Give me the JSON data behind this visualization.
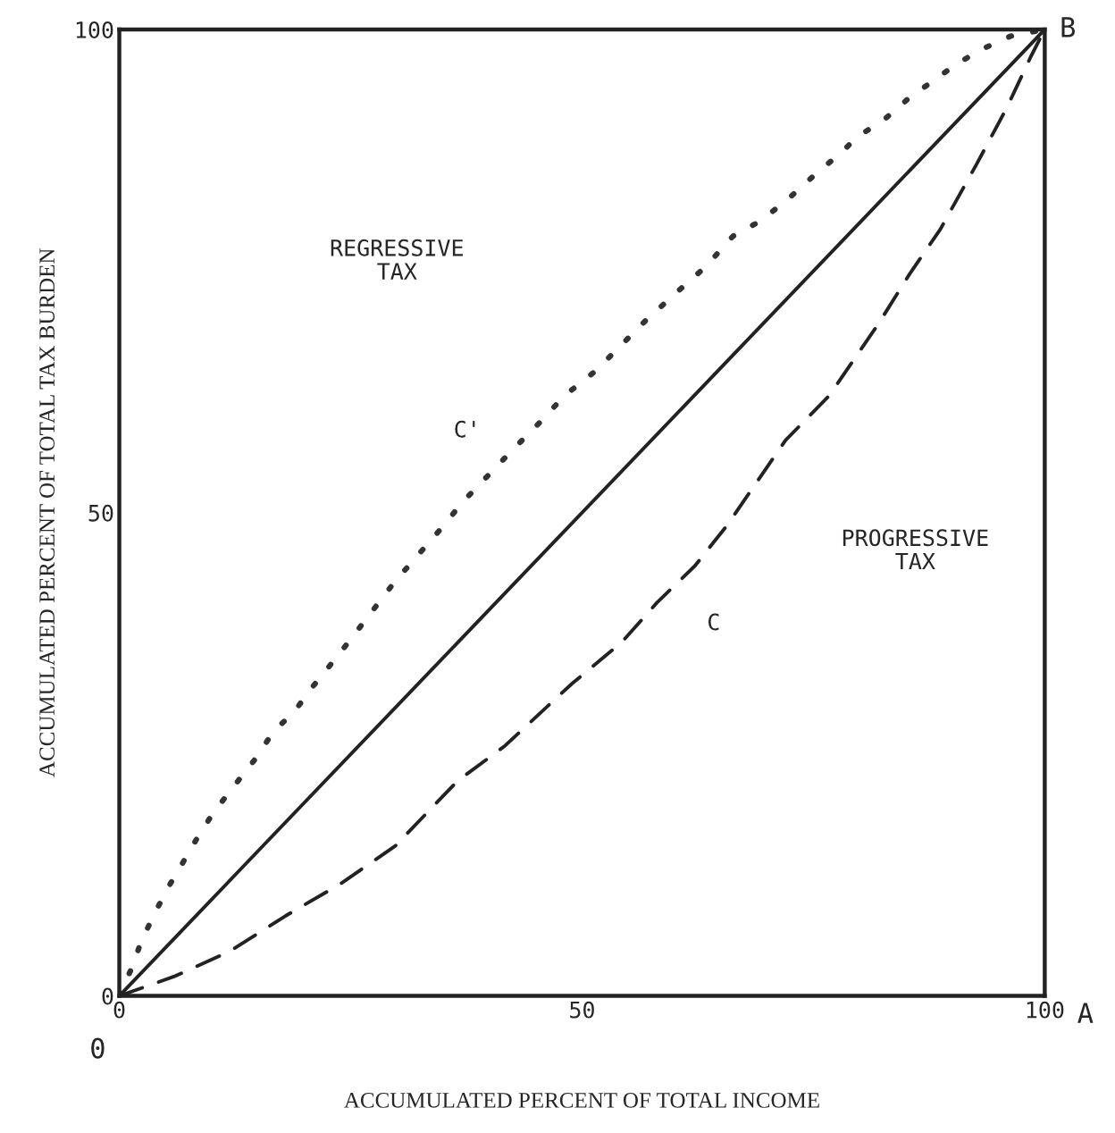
{
  "chart_data": {
    "type": "line",
    "xlabel": "ACCUMULATED PERCENT OF TOTAL INCOME",
    "ylabel": "ACCUMULATED PERCENT OF TOTAL TAX BURDEN",
    "xlim": [
      0,
      100
    ],
    "ylim": [
      0,
      100
    ],
    "xticks": [
      0,
      50,
      100
    ],
    "yticks": [
      0,
      50,
      100
    ],
    "grid": false,
    "legend": false,
    "series": [
      {
        "color": "#333333",
        "line_style": "dotted",
        "x": [
          0,
          1.3,
          2.4,
          3.7,
          5.2,
          7.0,
          8.7,
          10.2,
          12.8,
          14.6,
          16.7,
          18.9,
          20.9,
          22.6,
          24.6,
          29.8,
          35.0,
          37.0,
          42.4,
          45.4,
          48.1,
          51.5,
          56.9,
          60.0,
          63.3,
          66.3,
          69.3,
          72.2,
          75.2,
          77.8,
          79.8,
          82.8,
          85.2,
          90.6,
          93.3,
          96.3,
          100
        ],
        "values": [
          0,
          2.8,
          5.7,
          8.3,
          11.1,
          14.0,
          16.8,
          19.0,
          22.2,
          24.4,
          27.4,
          29.4,
          32.0,
          34.0,
          36.4,
          42.9,
          48.6,
          51.0,
          56.4,
          59.3,
          62.1,
          64.7,
          69.9,
          72.6,
          75.4,
          78.6,
          80.2,
          82.4,
          85.0,
          87.1,
          88.9,
          90.8,
          92.8,
          96.5,
          98.0,
          99.3,
          100
        ]
      },
      {
        "color": "#222222",
        "line_style": "solid",
        "x": [
          0,
          100
        ],
        "values": [
          0,
          100
        ]
      },
      {
        "color": "#222222",
        "line_style": "dashed",
        "x": [
          0,
          5.9,
          11.9,
          18.0,
          23.9,
          29.8,
          36.5,
          41.7,
          48.9,
          54.3,
          58.1,
          62.2,
          65.6,
          72.0,
          76.7,
          82.0,
          85.4,
          88.7,
          92.6,
          95.9,
          98.5,
          100
        ],
        "values": [
          0,
          2.0,
          4.6,
          8.3,
          11.6,
          15.5,
          22.2,
          25.9,
          32.3,
          36.6,
          40.7,
          44.5,
          48.6,
          57.5,
          62.1,
          69.5,
          74.7,
          79.3,
          86.0,
          91.9,
          97.2,
          100
        ]
      }
    ],
    "annotations": [
      "REGRESSIVE\nTAX",
      "PROGRESSIVE\nTAX",
      {
        "text": "C'",
        "x": 42.4,
        "y": 56.4
      },
      "C",
      {
        "text": "B",
        "x": 100,
        "y": 100
      },
      "A",
      {
        "text": "0",
        "x": 0,
        "y": 0
      }
    ]
  }
}
